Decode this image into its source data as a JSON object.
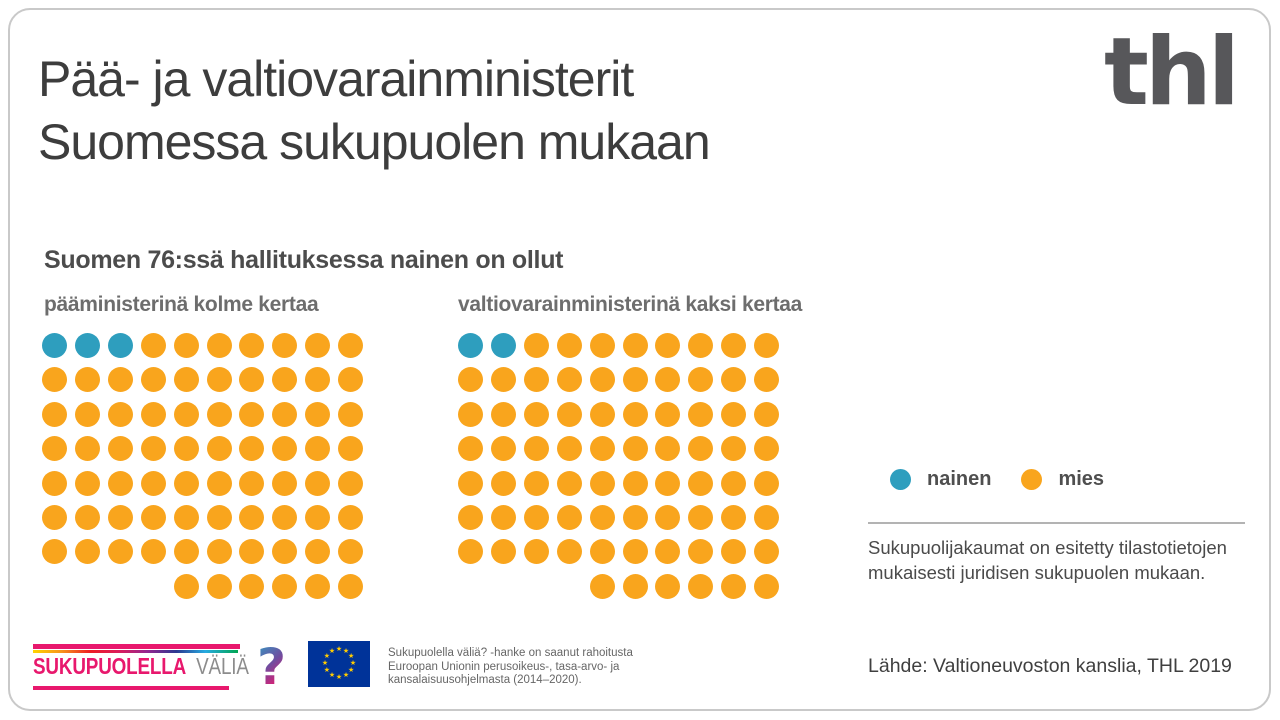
{
  "header": {
    "title_line1": "Pää- ja valtiovarainministerit",
    "title_line2": "Suomessa sukupuolen mukaan",
    "logo_text": "thl"
  },
  "subtitle": "Suomen 76:ssä hallituksessa nainen on ollut",
  "chart_data": {
    "type": "pictogram",
    "title": "Suomen 76:ssä hallituksessa nainen on ollut",
    "unit": "1 dot = 1 government (hallitus)",
    "columns": 10,
    "total_per_chart": 76,
    "full_rows": 7,
    "last_row_dots": 6,
    "last_row_offset_columns": 4,
    "charts": [
      {
        "label": "pääministerinä kolme kertaa",
        "nainen": 3,
        "mies": 73
      },
      {
        "label": "valtiovarainministerinä kaksi kertaa",
        "nainen": 2,
        "mies": 74
      }
    ],
    "legend": [
      {
        "label": "nainen",
        "color": "#2E9EBE"
      },
      {
        "label": "mies",
        "color": "#F9A51D"
      }
    ],
    "legend_position": "right"
  },
  "note": "Sukupuolijakaumat on esitetty tilastotietojen mukaisesti juridisen sukupuolen mukaan.",
  "source": "Lähde: Valtioneuvoston kanslia, THL 2019",
  "footer": {
    "project_logo": {
      "word1": "SUKUPUOLELLA",
      "word2": "VÄLIÄ",
      "mark": "?"
    },
    "eu_funding_text": "Sukupuolella väliä? -hanke on saanut rahoitusta Euroopan Unionin perusoikeus-, tasa-arvo- ja kansalaisuusohjelmasta (2014–2020)."
  },
  "colors": {
    "nainen": "#2E9EBE",
    "mies": "#F9A51D",
    "magenta": "#E8186D",
    "eu_blue": "#003399",
    "eu_star": "#FFCC00"
  }
}
